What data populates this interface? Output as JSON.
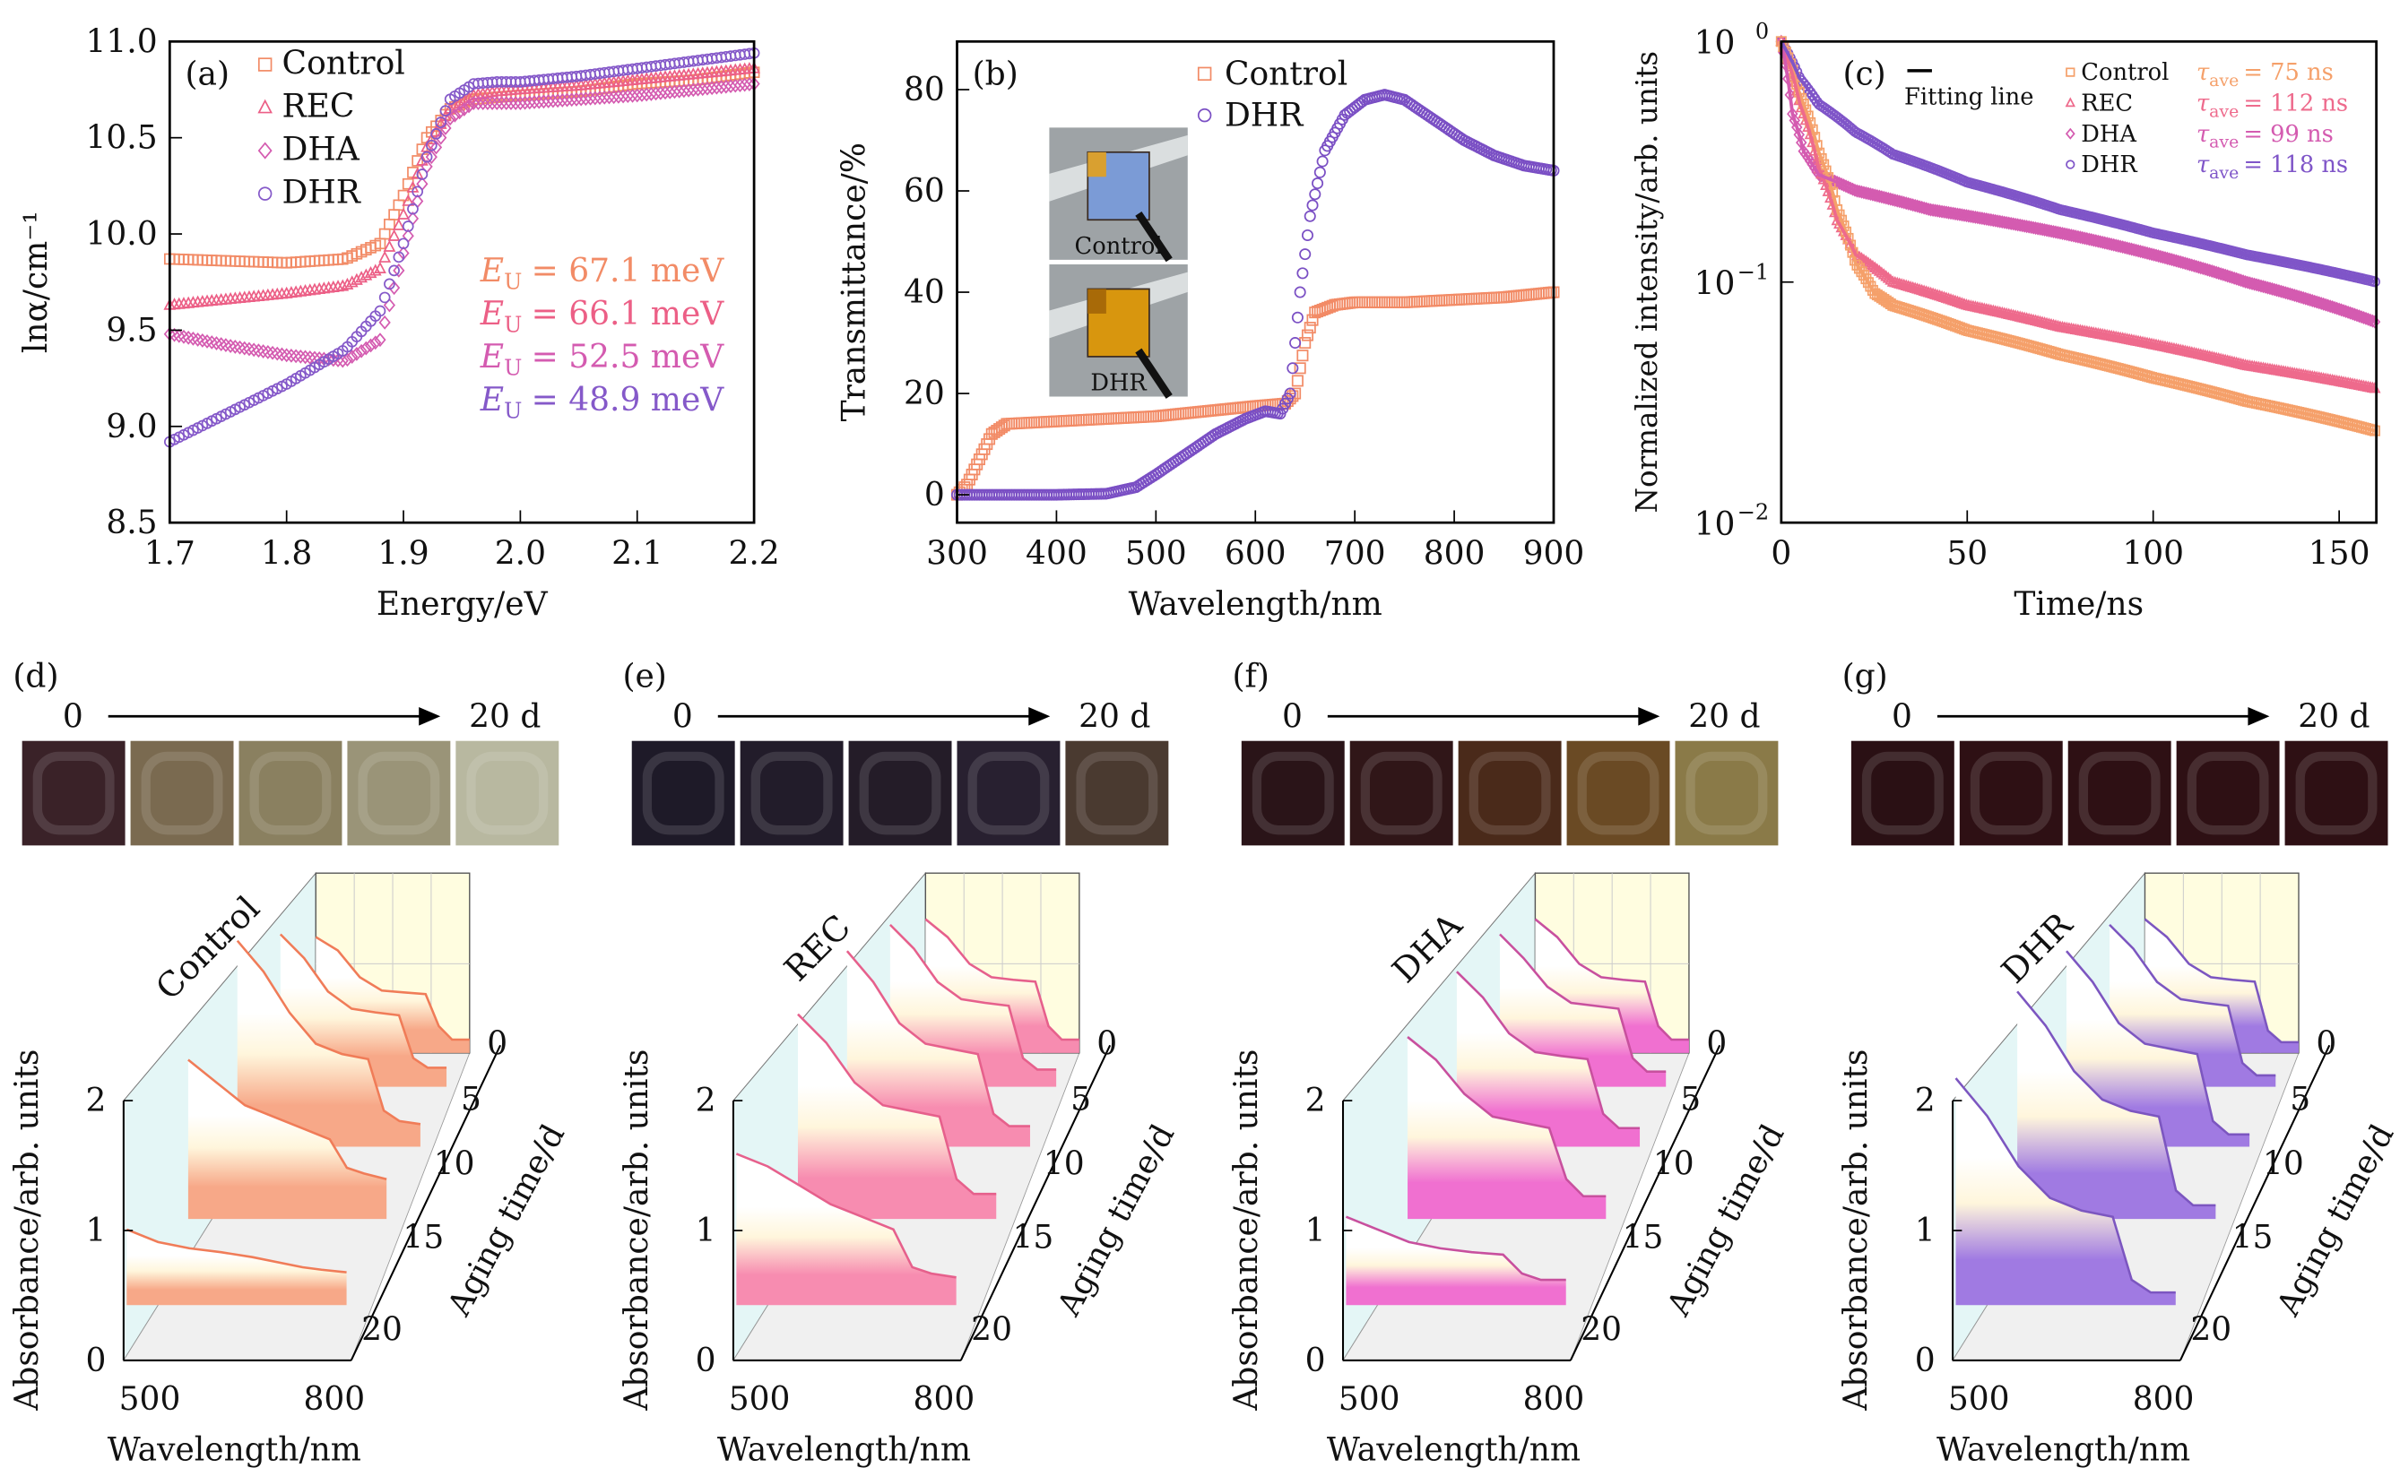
{
  "chart_data": [
    {
      "panel": "(a)",
      "type": "scatter",
      "xlabel": "Energy/eV",
      "ylabel": "lnα/cm⁻¹",
      "xlim": [
        1.7,
        2.2
      ],
      "ylim": [
        8.5,
        11.0
      ],
      "xticks": [
        "1.7",
        "1.8",
        "1.9",
        "2.0",
        "2.1",
        "2.2"
      ],
      "yticks": [
        "8.5",
        "9.0",
        "9.5",
        "10.0",
        "10.5",
        "11.0"
      ],
      "legend_placement": "top-left",
      "x": [
        1.7,
        1.75,
        1.8,
        1.85,
        1.88,
        1.9,
        1.92,
        1.94,
        1.96,
        1.98,
        2.0,
        2.05,
        2.1,
        2.15,
        2.2
      ],
      "series": [
        {
          "name": "Control",
          "marker": "square",
          "color": "#f28b66",
          "eu": "= 67.1 meV",
          "values": [
            9.87,
            9.86,
            9.85,
            9.87,
            9.95,
            10.2,
            10.5,
            10.65,
            10.7,
            10.71,
            10.72,
            10.74,
            10.78,
            10.8,
            10.84
          ]
        },
        {
          "name": "REC",
          "marker": "triangle",
          "color": "#ec5f86",
          "eu": "= 66.1 meV",
          "values": [
            9.63,
            9.66,
            9.69,
            9.73,
            9.82,
            10.1,
            10.45,
            10.65,
            10.72,
            10.74,
            10.75,
            10.77,
            10.8,
            10.83,
            10.86
          ]
        },
        {
          "name": "DHA",
          "marker": "diamond",
          "color": "#d45bb0",
          "eu": "= 52.5 meV",
          "values": [
            9.48,
            9.42,
            9.37,
            9.34,
            9.45,
            9.9,
            10.35,
            10.6,
            10.68,
            10.68,
            10.68,
            10.7,
            10.72,
            10.75,
            10.78
          ]
        },
        {
          "name": "DHR",
          "marker": "circle",
          "color": "#8559c9",
          "eu": "= 48.9 meV",
          "values": [
            8.92,
            9.07,
            9.22,
            9.4,
            9.6,
            9.95,
            10.4,
            10.7,
            10.78,
            10.79,
            10.79,
            10.82,
            10.86,
            10.9,
            10.94
          ]
        }
      ],
      "eu_symbol": "E",
      "eu_sub": "U"
    },
    {
      "panel": "(b)",
      "type": "scatter",
      "xlabel": "Wavelength/nm",
      "ylabel": "Transmittance/%",
      "xlim": [
        300,
        900
      ],
      "ylim": [
        -5.5,
        89.5
      ],
      "xticks": [
        "300",
        "400",
        "500",
        "600",
        "700",
        "800",
        "900"
      ],
      "yticks": [
        "0",
        "20",
        "40",
        "60",
        "80"
      ],
      "legend_placement": "top",
      "series": [
        {
          "name": "Control",
          "marker": "square",
          "color": "#f28b66",
          "x": [
            300,
            310,
            320,
            335,
            350,
            400,
            450,
            500,
            550,
            600,
            630,
            640,
            650,
            660,
            680,
            700,
            750,
            800,
            850,
            900
          ],
          "values": [
            0,
            2,
            6,
            12,
            14,
            14.5,
            15,
            15.5,
            16.5,
            17.5,
            18,
            20,
            30,
            36,
            37.5,
            38,
            38,
            38.5,
            39,
            40
          ]
        },
        {
          "name": "DHR",
          "marker": "circle",
          "color": "#7a4fc4",
          "x": [
            300,
            400,
            450,
            480,
            500,
            530,
            560,
            590,
            610,
            625,
            635,
            645,
            655,
            670,
            690,
            710,
            730,
            750,
            780,
            810,
            840,
            870,
            900
          ],
          "values": [
            0,
            0,
            0.2,
            1.5,
            4,
            8,
            12,
            15,
            16.5,
            16,
            20,
            40,
            55,
            68,
            75,
            78,
            79,
            78,
            74,
            70,
            67,
            65,
            64
          ]
        }
      ],
      "insets": [
        {
          "label": "Control",
          "film_color": "#7b9bd6",
          "accent_color": "#d9a030"
        },
        {
          "label": "DHR",
          "film_color": "#d8960e",
          "accent_color": "#a86a08"
        }
      ]
    },
    {
      "panel": "(c)",
      "type": "scatter",
      "xlabel": "Time/ns",
      "ylabel": "Normalized intensity/arb. units",
      "xlim": [
        0,
        160
      ],
      "ylim": [
        0.01,
        1
      ],
      "yscale": "log",
      "xticks": [
        "0",
        "50",
        "100",
        "150"
      ],
      "yticks": [
        {
          "base": "10",
          "exp": "0"
        },
        {
          "base": "10",
          "exp": "−1"
        },
        {
          "base": "10",
          "exp": "−2"
        }
      ],
      "fit_label": "Fitting line",
      "tau_symbol": "τ",
      "tau_sub": "ave",
      "series": [
        {
          "name": "Control",
          "marker": "square",
          "color": "#f5a06a",
          "tau": "= 75 ns",
          "x": [
            0,
            5,
            10,
            15,
            20,
            25,
            30,
            50,
            75,
            100,
            125,
            160
          ],
          "values": [
            1,
            0.6,
            0.35,
            0.2,
            0.12,
            0.09,
            0.08,
            0.063,
            0.05,
            0.04,
            0.032,
            0.024
          ]
        },
        {
          "name": "REC",
          "marker": "triangle",
          "color": "#ee6a8c",
          "tau": "= 112 ns",
          "x": [
            0,
            5,
            10,
            15,
            20,
            30,
            50,
            75,
            100,
            125,
            160
          ],
          "values": [
            1,
            0.55,
            0.3,
            0.18,
            0.13,
            0.1,
            0.08,
            0.065,
            0.055,
            0.045,
            0.036
          ]
        },
        {
          "name": "DHA",
          "marker": "diamond",
          "color": "#d45bb0",
          "tau": "= 99 ns",
          "x": [
            0,
            3,
            6,
            10,
            20,
            40,
            75,
            100,
            125,
            160
          ],
          "values": [
            1,
            0.5,
            0.35,
            0.28,
            0.24,
            0.2,
            0.16,
            0.13,
            0.1,
            0.068
          ]
        },
        {
          "name": "DHR",
          "marker": "circle",
          "color": "#7f55c8",
          "tau": "= 118 ns",
          "x": [
            0,
            5,
            10,
            20,
            30,
            50,
            75,
            100,
            125,
            160
          ],
          "values": [
            1,
            0.7,
            0.55,
            0.42,
            0.34,
            0.26,
            0.2,
            0.16,
            0.13,
            0.1
          ]
        }
      ]
    },
    {
      "panel": "(d)",
      "type": "area",
      "sample": "Control",
      "color": "#f7a888",
      "line_color": "#f07c58",
      "timeline": {
        "start": "0",
        "end": "20 d"
      },
      "photo_colors": [
        "#3a2228",
        "#7a6a50",
        "#8a8060",
        "#9a9478",
        "#b8b8a0"
      ],
      "xlabel": "Wavelength/nm",
      "ylabel": "Absorbance/arb. units",
      "zlabel": "Aging time/d",
      "xticks": [
        "500",
        "800"
      ],
      "yticks": [
        "0",
        "1",
        "2"
      ],
      "zticks": [
        "0",
        "5",
        "10",
        "15",
        "20"
      ],
      "wavelengths": [
        450,
        500,
        550,
        600,
        650,
        700,
        730,
        760,
        800
      ],
      "spectra": [
        [
          1.3,
          1.15,
          0.85,
          0.7,
          0.68,
          0.66,
          0.3,
          0.15,
          0.15
        ],
        [
          1.6,
          1.35,
          1.0,
          0.82,
          0.78,
          0.75,
          0.3,
          0.2,
          0.2
        ],
        [
          2.0,
          1.7,
          1.3,
          1.0,
          0.9,
          0.85,
          0.35,
          0.25,
          0.22
        ],
        [
          1.4,
          1.2,
          1.0,
          0.9,
          0.8,
          0.7,
          0.45,
          0.4,
          0.35
        ],
        [
          0.6,
          0.5,
          0.45,
          0.42,
          0.38,
          0.33,
          0.3,
          0.28,
          0.26
        ]
      ]
    },
    {
      "panel": "(e)",
      "type": "area",
      "sample": "REC",
      "color": "#f78cb0",
      "line_color": "#e6608c",
      "timeline": {
        "start": "0",
        "end": "20 d"
      },
      "photo_colors": [
        "#1e1a28",
        "#221c2a",
        "#241c28",
        "#282030",
        "#4a3a30"
      ],
      "xlabel": "Wavelength/nm",
      "ylabel": "Absorbance/arb. units",
      "zlabel": "Aging time/d",
      "xticks": [
        "500",
        "800"
      ],
      "yticks": [
        "0",
        "1",
        "2"
      ],
      "zticks": [
        "0",
        "5",
        "10",
        "15",
        "20"
      ],
      "wavelengths": [
        450,
        500,
        550,
        600,
        650,
        700,
        730,
        760,
        800
      ],
      "spectra": [
        [
          1.5,
          1.3,
          1.0,
          0.85,
          0.82,
          0.8,
          0.3,
          0.15,
          0.15
        ],
        [
          1.7,
          1.45,
          1.1,
          0.92,
          0.88,
          0.85,
          0.3,
          0.18,
          0.18
        ],
        [
          1.9,
          1.6,
          1.2,
          1.0,
          0.95,
          0.9,
          0.32,
          0.2,
          0.2
        ],
        [
          1.8,
          1.55,
          1.2,
          1.0,
          0.95,
          0.9,
          0.35,
          0.22,
          0.22
        ],
        [
          1.2,
          1.1,
          0.95,
          0.8,
          0.7,
          0.6,
          0.3,
          0.25,
          0.22
        ]
      ]
    },
    {
      "panel": "(f)",
      "type": "area",
      "sample": "DHA",
      "color": "#f070d0",
      "line_color": "#c8509e",
      "timeline": {
        "start": "0",
        "end": "20 d"
      },
      "photo_colors": [
        "#2a1418",
        "#301618",
        "#4a2a1a",
        "#6a4a24",
        "#8a7a48"
      ],
      "xlabel": "Wavelength/nm",
      "ylabel": "Absorbance/arb. units",
      "zlabel": "Aging time/d",
      "xticks": [
        "500",
        "800"
      ],
      "yticks": [
        "0",
        "1",
        "2"
      ],
      "zticks": [
        "0",
        "5",
        "10",
        "15",
        "20"
      ],
      "wavelengths": [
        450,
        500,
        550,
        600,
        650,
        700,
        730,
        760,
        800
      ],
      "spectra": [
        [
          1.5,
          1.3,
          1.0,
          0.85,
          0.82,
          0.8,
          0.3,
          0.15,
          0.15
        ],
        [
          1.6,
          1.35,
          1.05,
          0.88,
          0.85,
          0.82,
          0.3,
          0.16,
          0.16
        ],
        [
          1.7,
          1.45,
          1.1,
          0.92,
          0.88,
          0.85,
          0.32,
          0.18,
          0.18
        ],
        [
          1.6,
          1.4,
          1.1,
          0.9,
          0.85,
          0.8,
          0.35,
          0.2,
          0.2
        ],
        [
          0.7,
          0.6,
          0.5,
          0.45,
          0.42,
          0.4,
          0.25,
          0.2,
          0.2
        ]
      ]
    },
    {
      "panel": "(g)",
      "type": "area",
      "sample": "DHR",
      "color": "#a07ae2",
      "line_color": "#7c56c0",
      "timeline": {
        "start": "0",
        "end": "20 d"
      },
      "photo_colors": [
        "#2a1014",
        "#2e1014",
        "#2e1014",
        "#2e1014",
        "#2e1014"
      ],
      "xlabel": "Wavelength/nm",
      "ylabel": "Absorbance/arb. units",
      "zlabel": "Aging time/d",
      "xticks": [
        "500",
        "800"
      ],
      "yticks": [
        "0",
        "1",
        "2"
      ],
      "zticks": [
        "0",
        "5",
        "10",
        "15",
        "20"
      ],
      "wavelengths": [
        450,
        500,
        550,
        600,
        650,
        700,
        730,
        760,
        800
      ],
      "spectra": [
        [
          1.5,
          1.3,
          1.0,
          0.85,
          0.82,
          0.8,
          0.25,
          0.12,
          0.12
        ],
        [
          1.7,
          1.45,
          1.1,
          0.92,
          0.88,
          0.85,
          0.25,
          0.12,
          0.12
        ],
        [
          1.9,
          1.6,
          1.2,
          1.0,
          0.95,
          0.9,
          0.25,
          0.12,
          0.12
        ],
        [
          2.0,
          1.7,
          1.3,
          1.05,
          0.95,
          0.9,
          0.25,
          0.12,
          0.12
        ],
        [
          1.8,
          1.5,
          1.1,
          0.85,
          0.75,
          0.7,
          0.2,
          0.1,
          0.1
        ]
      ]
    }
  ]
}
